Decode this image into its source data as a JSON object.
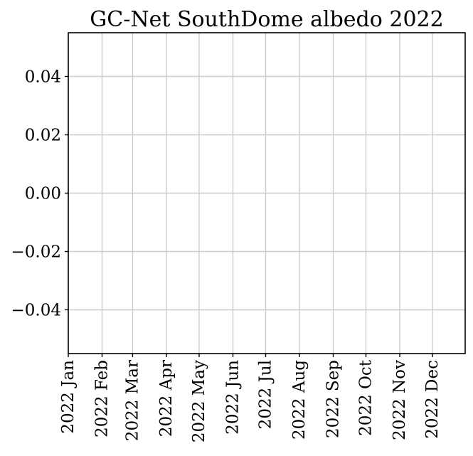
{
  "chart_data": {
    "type": "line",
    "title": "GC-Net SouthDome albedo 2022",
    "xlabel": "",
    "ylabel": "",
    "x_ticks": [
      "2022 Jan",
      "2022 Feb",
      "2022 Mar",
      "2022 Apr",
      "2022 May",
      "2022 Jun",
      "2022 Jul",
      "2022 Aug",
      "2022 Sep",
      "2022 Oct",
      "2022 Nov",
      "2022 Dec"
    ],
    "x_tick_dates": [
      "2022-01-01",
      "2022-02-01",
      "2022-03-01",
      "2022-04-01",
      "2022-05-01",
      "2022-06-01",
      "2022-07-01",
      "2022-08-01",
      "2022-09-01",
      "2022-10-01",
      "2022-11-01",
      "2022-12-01"
    ],
    "xlim": [
      "2022-01-01",
      "2022-12-31"
    ],
    "y_ticks": [
      "0.04",
      "0.02",
      "0.00",
      "−0.02",
      "−0.04"
    ],
    "y_tick_values": [
      0.04,
      0.02,
      0.0,
      -0.02,
      -0.04
    ],
    "ylim": [
      -0.055,
      0.055
    ],
    "series": [],
    "grid": true,
    "colors": {
      "grid": "#cccccc",
      "axis": "#000000"
    }
  }
}
